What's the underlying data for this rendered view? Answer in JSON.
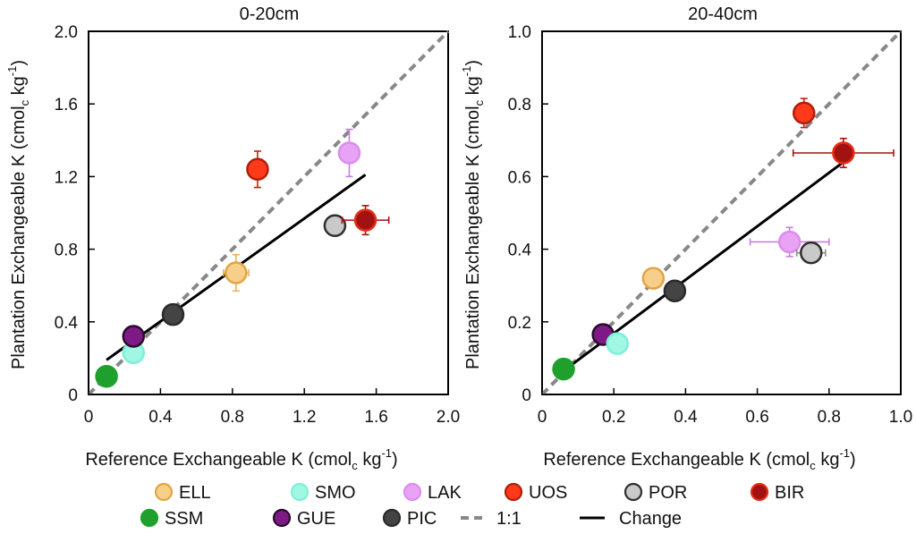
{
  "chart_data": [
    {
      "type": "scatter",
      "title": "0-20cm",
      "xlabel_main": "Reference Exchangeable K (cmol",
      "xlabel_sub": "c",
      "xlabel_rest": " kg",
      "xlabel_sup": "-1",
      "xlabel_close": ")",
      "ylabel_main": "Plantation Exchangeable K (cmol",
      "ylabel_sub": "c",
      "ylabel_rest": " kg",
      "ylabel_sup": "-1",
      "ylabel_close": ")",
      "xlim": [
        0,
        2.0
      ],
      "ylim": [
        0,
        2.0
      ],
      "xticks": [
        "0",
        "0.4",
        "0.8",
        "1.2",
        "1.6",
        "2.0"
      ],
      "yticks": [
        "0",
        "0.4",
        "0.8",
        "1.2",
        "1.6",
        "2.0"
      ],
      "points": [
        {
          "site": "SSM",
          "x": 0.1,
          "y": 0.1,
          "xerr": 0,
          "yerr": 0
        },
        {
          "site": "SMO",
          "x": 0.25,
          "y": 0.23,
          "xerr": 0.02,
          "yerr": 0.02
        },
        {
          "site": "GUE",
          "x": 0.25,
          "y": 0.32,
          "xerr": 0,
          "yerr": 0
        },
        {
          "site": "PIC",
          "x": 0.47,
          "y": 0.44,
          "xerr": 0,
          "yerr": 0
        },
        {
          "site": "ELL",
          "x": 0.82,
          "y": 0.67,
          "xerr": 0.07,
          "yerr": 0.1
        },
        {
          "site": "POR",
          "x": 1.37,
          "y": 0.93,
          "xerr": 0,
          "yerr": 0
        },
        {
          "site": "UOS",
          "x": 0.94,
          "y": 1.24,
          "xerr": 0,
          "yerr": 0.1
        },
        {
          "site": "LAK",
          "x": 1.45,
          "y": 1.33,
          "xerr": 0,
          "yerr": 0.13
        },
        {
          "site": "BIR",
          "x": 1.54,
          "y": 0.96,
          "xerr": 0.13,
          "yerr": 0.08
        }
      ],
      "identity_line": [
        [
          0,
          0
        ],
        [
          2.0,
          2.0
        ]
      ],
      "change_line": [
        [
          0.1,
          0.19
        ],
        [
          1.54,
          1.21
        ]
      ]
    },
    {
      "type": "scatter",
      "title": "20-40cm",
      "xlabel_main": "Reference Exchangeable K (cmol",
      "xlabel_sub": "c",
      "xlabel_rest": " kg",
      "xlabel_sup": "-1",
      "xlabel_close": ")",
      "ylabel_main": "Plantation Exchangeable K (cmol",
      "ylabel_sub": "c",
      "ylabel_rest": " kg",
      "ylabel_sup": "-1",
      "ylabel_close": ")",
      "xlim": [
        0,
        1.0
      ],
      "ylim": [
        0,
        1.0
      ],
      "xticks": [
        "0",
        "0.2",
        "0.4",
        "0.6",
        "0.8",
        "1.0"
      ],
      "yticks": [
        "0",
        "0.2",
        "0.4",
        "0.6",
        "0.8",
        "1.0"
      ],
      "points": [
        {
          "site": "SSM",
          "x": 0.06,
          "y": 0.07,
          "xerr": 0,
          "yerr": 0
        },
        {
          "site": "GUE",
          "x": 0.17,
          "y": 0.165,
          "xerr": 0,
          "yerr": 0
        },
        {
          "site": "SMO",
          "x": 0.21,
          "y": 0.14,
          "xerr": 0.02,
          "yerr": 0.01
        },
        {
          "site": "ELL",
          "x": 0.31,
          "y": 0.32,
          "xerr": 0,
          "yerr": 0
        },
        {
          "site": "PIC",
          "x": 0.37,
          "y": 0.285,
          "xerr": 0,
          "yerr": 0
        },
        {
          "site": "LAK",
          "x": 0.69,
          "y": 0.42,
          "xerr": 0.11,
          "yerr": 0.04
        },
        {
          "site": "POR",
          "x": 0.75,
          "y": 0.39,
          "xerr": 0.04,
          "yerr": 0
        },
        {
          "site": "UOS",
          "x": 0.73,
          "y": 0.775,
          "xerr": 0,
          "yerr": 0.04
        },
        {
          "site": "BIR",
          "x": 0.84,
          "y": 0.665,
          "xerr": 0.14,
          "yerr": 0.04
        }
      ],
      "identity_line": [
        [
          0,
          0
        ],
        [
          1.0,
          1.0
        ]
      ],
      "change_line": [
        [
          0.06,
          0.065
        ],
        [
          0.84,
          0.64
        ]
      ]
    }
  ],
  "colors": {
    "ELL": {
      "fill": "#f7ce8a",
      "stroke": "#e2a545",
      "err": "#e8b25c"
    },
    "SMO": {
      "fill": "#9ff7e4",
      "stroke": "#7df0d8",
      "err": "#5fd6bd"
    },
    "LAK": {
      "fill": "#e8a3f5",
      "stroke": "#dc8cf0",
      "err": "#c97de0"
    },
    "UOS": {
      "fill": "#ff3a1a",
      "stroke": "#b01e0a",
      "err": "#c0200c"
    },
    "POR": {
      "fill": "#c9c9c9",
      "stroke": "#2f2f2f",
      "err": "#8a8a8a"
    },
    "BIR": {
      "fill": "#a31212",
      "stroke": "#e52d12",
      "err": "#a31212"
    },
    "SSM": {
      "fill": "#1fa02d",
      "stroke": "#1fa02d",
      "err": "#1fa02d"
    },
    "GUE": {
      "fill": "#7e1a86",
      "stroke": "#2a0b2d",
      "err": "#7e1a86"
    },
    "PIC": {
      "fill": "#444444",
      "stroke": "#2a2a2a",
      "err": "#444444"
    },
    "identity": "#888888",
    "change": "#000000"
  },
  "legend": {
    "row1": [
      {
        "key": "ELL",
        "label": "ELL",
        "kind": "marker"
      },
      {
        "key": "SMO",
        "label": "SMO",
        "kind": "marker"
      },
      {
        "key": "LAK",
        "label": "LAK",
        "kind": "marker"
      },
      {
        "key": "UOS",
        "label": "UOS",
        "kind": "marker"
      },
      {
        "key": "POR",
        "label": "POR",
        "kind": "marker"
      },
      {
        "key": "BIR",
        "label": "BIR",
        "kind": "marker"
      }
    ],
    "row2": [
      {
        "key": "SSM",
        "label": "SSM",
        "kind": "marker"
      },
      {
        "key": "GUE",
        "label": "GUE",
        "kind": "marker"
      },
      {
        "key": "PIC",
        "label": "PIC",
        "kind": "marker"
      },
      {
        "key": "identity",
        "label": "1:1",
        "kind": "dashed"
      },
      {
        "key": "change",
        "label": "Change",
        "kind": "solid"
      }
    ]
  }
}
